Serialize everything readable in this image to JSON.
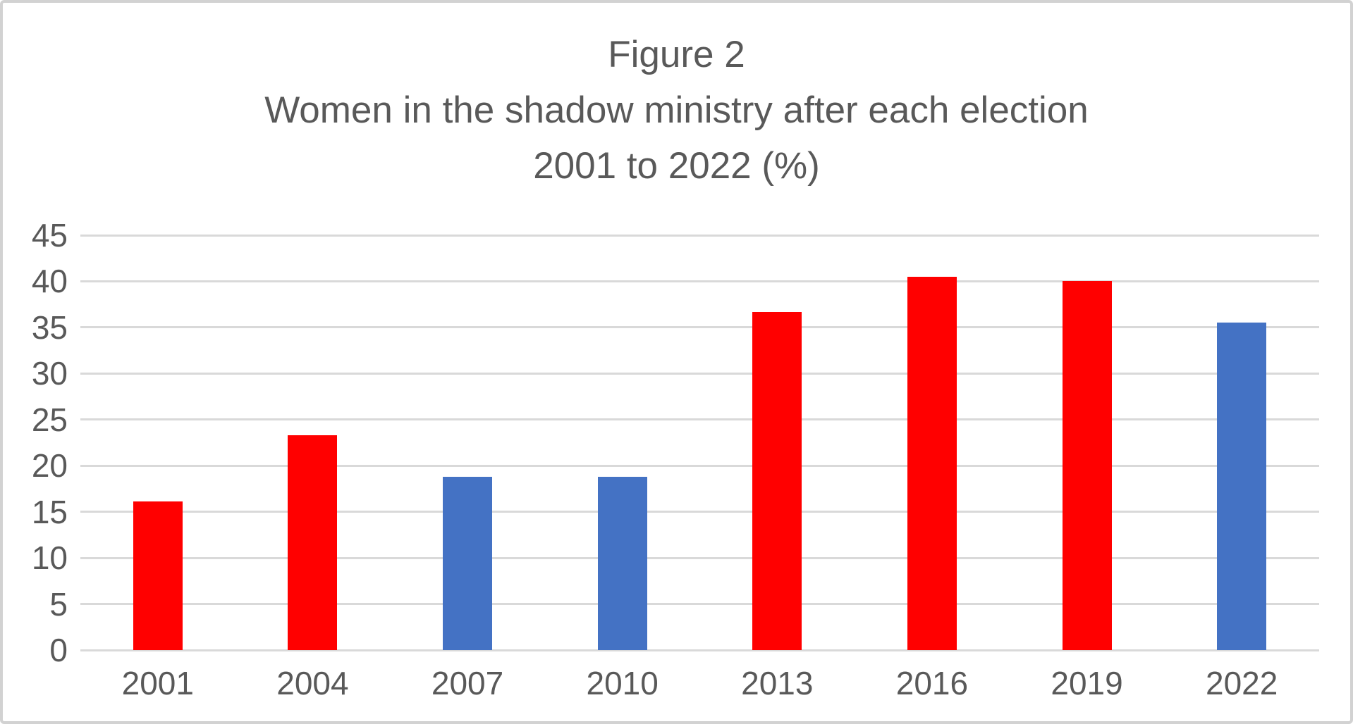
{
  "title": {
    "line1": "Figure 2",
    "line2": "Women in the shadow ministry after each election",
    "line3": "2001 to 2022 (%)"
  },
  "chart_data": {
    "type": "bar",
    "title": "Figure 2 — Women in the shadow ministry after each election — 2001 to 2022 (%)",
    "categories": [
      "2001",
      "2004",
      "2007",
      "2010",
      "2013",
      "2016",
      "2019",
      "2022"
    ],
    "values": [
      16.1,
      23.3,
      18.8,
      18.8,
      36.7,
      40.5,
      40.0,
      35.5
    ],
    "bar_colors": [
      "#FF0000",
      "#FF0000",
      "#4472C4",
      "#4472C4",
      "#FF0000",
      "#FF0000",
      "#FF0000",
      "#4472C4"
    ],
    "xlabel": "",
    "ylabel": "",
    "ylim": [
      0,
      45
    ],
    "yticks": [
      0,
      5,
      10,
      15,
      20,
      25,
      30,
      35,
      40,
      45
    ],
    "grid": true,
    "legend": "none"
  },
  "colors": {
    "red": "#FF0000",
    "blue": "#4472C4",
    "gridline": "#D9D9D9",
    "text": "#595959",
    "border": "#D2D2D2",
    "background": "#FFFFFF"
  }
}
